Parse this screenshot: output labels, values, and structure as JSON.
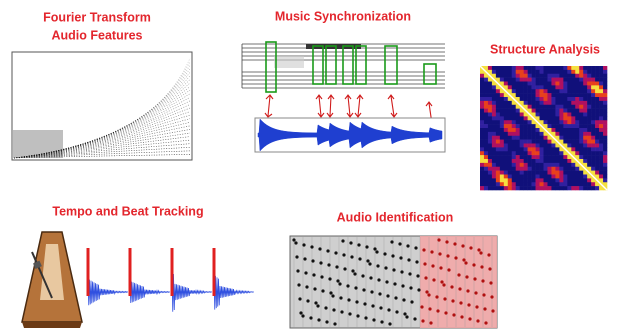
{
  "panels": [
    {
      "title": [
        "Fourier Transform",
        "Audio Features"
      ]
    },
    {
      "title": [
        "Music Synchronization"
      ]
    },
    {
      "title": [
        "Structure Analysis"
      ]
    },
    {
      "title": [
        "Tempo and Beat Tracking"
      ]
    },
    {
      "title": [
        "Audio Identification"
      ]
    }
  ]
}
